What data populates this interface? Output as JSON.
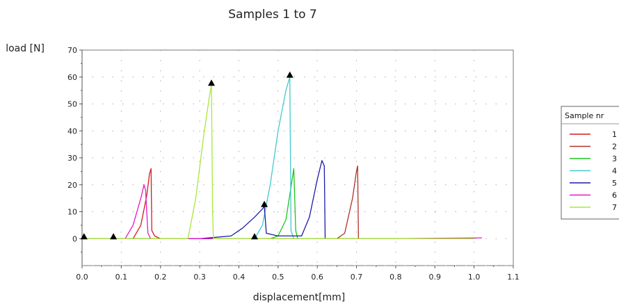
{
  "chart_data": {
    "type": "line",
    "title": "Samples  1  to 7",
    "xlabel": "displacement[mm]",
    "ylabel": "load [N]",
    "xlim": [
      0.0,
      1.1
    ],
    "ylim": [
      -10,
      70
    ],
    "x_ticks": [
      0.0,
      0.1,
      0.2,
      0.3,
      0.4,
      0.5,
      0.6,
      0.7,
      0.8,
      0.9,
      1.0,
      1.1
    ],
    "x_tick_labels": [
      "0.0",
      "0.1",
      "0.2",
      "0.3",
      "0.4",
      "0.5",
      "0.6",
      "0.7",
      "0.8",
      "0.9",
      "1.0",
      "1.1"
    ],
    "y_ticks": [
      0,
      10,
      20,
      30,
      40,
      50,
      60,
      70
    ],
    "y_tick_labels": [
      "0",
      "10",
      "20",
      "30",
      "40",
      "50",
      "60",
      "70"
    ],
    "grid": true,
    "legend": {
      "title": "Sample nr",
      "placement": "right",
      "entries": [
        "1",
        "2",
        "3",
        "4",
        "5",
        "6",
        "7"
      ]
    },
    "series": [
      {
        "name": "1",
        "color": "#d11d1d",
        "x": [
          0.0,
          0.13,
          0.15,
          0.165,
          0.172,
          0.176,
          0.178,
          0.185,
          0.2,
          0.3,
          0.5,
          0.7,
          1.0
        ],
        "y": [
          0,
          0,
          5,
          16,
          24,
          26,
          3,
          1,
          0,
          0,
          0,
          0,
          0
        ]
      },
      {
        "name": "2",
        "color": "#b2302a",
        "x": [
          0.0,
          0.3,
          0.5,
          0.65,
          0.67,
          0.69,
          0.7,
          0.703,
          0.705,
          0.8,
          1.0
        ],
        "y": [
          0,
          0,
          0,
          0,
          2,
          15,
          25,
          27,
          0,
          0,
          0
        ]
      },
      {
        "name": "3",
        "color": "#1fc41f",
        "x": [
          0.0,
          0.3,
          0.48,
          0.5,
          0.52,
          0.535,
          0.54,
          0.545,
          0.55,
          0.7,
          1.0
        ],
        "y": [
          0,
          0,
          0,
          1,
          7,
          21,
          26,
          3,
          0,
          0,
          0
        ]
      },
      {
        "name": "4",
        "color": "#44c8cc",
        "x": [
          0.0,
          0.3,
          0.44,
          0.46,
          0.48,
          0.5,
          0.52,
          0.53,
          0.533,
          0.54,
          0.7,
          1.0
        ],
        "y": [
          0,
          0,
          0,
          5,
          20,
          40,
          55,
          60,
          3,
          0,
          0,
          0
        ]
      },
      {
        "name": "5",
        "color": "#1a1aa8",
        "x": [
          0.0,
          0.3,
          0.38,
          0.41,
          0.44,
          0.46,
          0.465,
          0.47,
          0.5,
          0.56,
          0.58,
          0.6,
          0.612,
          0.618,
          0.62,
          0.7,
          1.0
        ],
        "y": [
          0,
          0,
          1,
          4,
          8,
          11,
          12,
          2,
          1,
          1,
          8,
          22,
          29,
          27,
          0,
          0,
          0
        ]
      },
      {
        "name": "6",
        "color": "#e418c9",
        "x": [
          0.0,
          0.11,
          0.13,
          0.15,
          0.158,
          0.162,
          0.168,
          0.175,
          0.3,
          0.6,
          0.8,
          1.02
        ],
        "y": [
          0,
          0,
          5,
          15,
          20,
          18,
          2,
          0,
          0,
          0,
          0,
          0.3
        ]
      },
      {
        "name": "7",
        "color": "#a8e83a",
        "x": [
          0.0,
          0.2,
          0.27,
          0.29,
          0.31,
          0.325,
          0.33,
          0.333,
          0.335,
          0.5,
          1.0
        ],
        "y": [
          0,
          0,
          0,
          15,
          38,
          53,
          57,
          10,
          0,
          0,
          0
        ]
      }
    ],
    "markers": [
      {
        "shape": "triangle",
        "x": 0.005,
        "y": 0
      },
      {
        "shape": "triangle",
        "x": 0.08,
        "y": 0
      },
      {
        "shape": "triangle",
        "x": 0.33,
        "y": 57
      },
      {
        "shape": "triangle",
        "x": 0.44,
        "y": 0
      },
      {
        "shape": "triangle",
        "x": 0.465,
        "y": 12
      },
      {
        "shape": "triangle",
        "x": 0.53,
        "y": 60
      }
    ]
  }
}
